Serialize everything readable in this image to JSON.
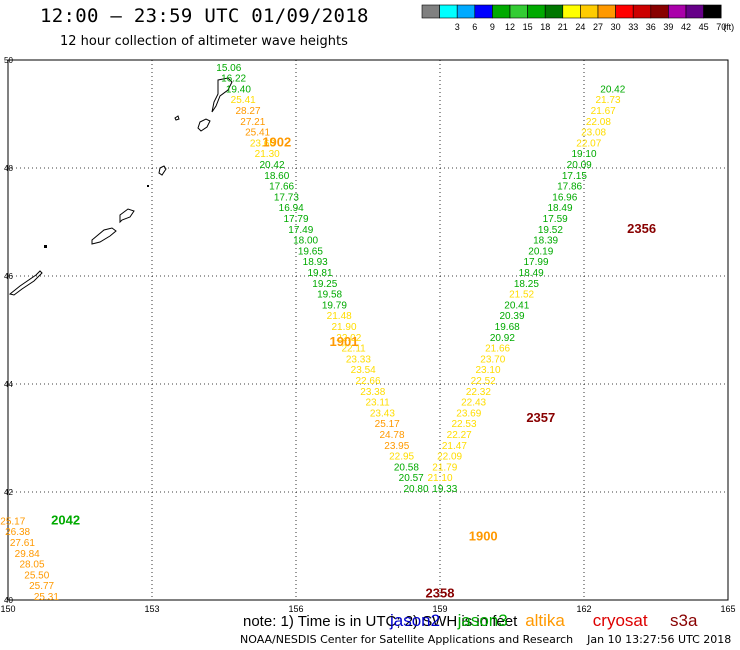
{
  "header": {
    "title": "12:00 – 23:59 UTC 01/09/2018",
    "subtitle": "12 hour collection of altimeter wave heights"
  },
  "footer": {
    "credit": "NOAA/NESDIS Center for Satellite Applications and Research    Jan 10 13:27:56 UTC 2018"
  },
  "colorbar": {
    "unit_label": "(ft)",
    "bins": [
      {
        "color": "#808080",
        "label": ""
      },
      {
        "color": "#00ffff",
        "label": "3"
      },
      {
        "color": "#00aaff",
        "label": "6"
      },
      {
        "color": "#0000ff",
        "label": "9"
      },
      {
        "color": "#00aa00",
        "label": "12"
      },
      {
        "color": "#33cc33",
        "label": "15"
      },
      {
        "color": "#00aa00",
        "label": "18"
      },
      {
        "color": "#007700",
        "label": "21"
      },
      {
        "color": "#ffff00",
        "label": "24"
      },
      {
        "color": "#ffcc00",
        "label": "27"
      },
      {
        "color": "#ff9900",
        "label": "30"
      },
      {
        "color": "#ff0000",
        "label": "33"
      },
      {
        "color": "#cc0000",
        "label": "36"
      },
      {
        "color": "#880000",
        "label": "39"
      },
      {
        "color": "#aa00aa",
        "label": "42"
      },
      {
        "color": "#660088",
        "label": "45"
      },
      {
        "color": "#000000",
        "label": "70"
      }
    ]
  },
  "map": {
    "lon_range": [
      150,
      165
    ],
    "lat_range": [
      40,
      50
    ],
    "x_ticks": [
      "150",
      "153",
      "156",
      "159",
      "162",
      "165"
    ],
    "y_ticks": [
      "40",
      "42",
      "44",
      "46",
      "48",
      "50"
    ],
    "grid": "dotted"
  },
  "legend": {
    "note": "note: 1) Time is in UTC; 2) SWH is in feet",
    "satellites": [
      {
        "name": "jason2",
        "color": "#0000cc"
      },
      {
        "name": "jason3",
        "color": "#00aa00"
      },
      {
        "name": "altika",
        "color": "#ff9900"
      },
      {
        "name": "cryosat",
        "color": "#dd0000"
      },
      {
        "name": "s3a",
        "color": "#880000"
      }
    ]
  },
  "colors": {
    "green": "#00aa00",
    "yellow": "#ffdd00",
    "orange": "#ff9900",
    "darkred": "#880000",
    "coast": "#000000",
    "grid": "#000000"
  },
  "chart_data": {
    "type": "scatter",
    "x_range": [
      150,
      165
    ],
    "y_range": [
      40,
      50
    ],
    "pass_labels": [
      {
        "text": "1902",
        "lon": 155.6,
        "lat": 48.4,
        "color": "#ff9900"
      },
      {
        "text": "1901",
        "lon": 157.0,
        "lat": 44.7,
        "color": "#ff9900"
      },
      {
        "text": "1900",
        "lon": 159.9,
        "lat": 41.1,
        "color": "#ff9900"
      },
      {
        "text": "2356",
        "lon": 163.2,
        "lat": 46.8,
        "color": "#880000"
      },
      {
        "text": "2357",
        "lon": 161.1,
        "lat": 43.3,
        "color": "#880000"
      },
      {
        "text": "2358",
        "lon": 159.0,
        "lat": 40.05,
        "color": "#880000"
      },
      {
        "text": "2042",
        "lon": 151.2,
        "lat": 41.4,
        "color": "#00aa00"
      }
    ],
    "tracks": [
      {
        "id": "track-descending-a",
        "points": [
          {
            "lon": 154.6,
            "lat": 49.8,
            "v": "15.06",
            "color": "#00aa00"
          },
          {
            "lon": 154.7,
            "lat": 49.6,
            "v": "16.22",
            "color": "#00aa00"
          },
          {
            "lon": 154.8,
            "lat": 49.4,
            "v": "19.40",
            "color": "#00aa00"
          },
          {
            "lon": 154.9,
            "lat": 49.2,
            "v": "25.41",
            "color": "#ffdd00"
          },
          {
            "lon": 155.0,
            "lat": 49.0,
            "v": "28.27",
            "color": "#ff9900"
          },
          {
            "lon": 155.1,
            "lat": 48.8,
            "v": "27.21",
            "color": "#ff9900"
          },
          {
            "lon": 155.2,
            "lat": 48.6,
            "v": "25.41",
            "color": "#ff9900"
          },
          {
            "lon": 155.3,
            "lat": 48.4,
            "v": "23.66",
            "color": "#ffdd00"
          },
          {
            "lon": 155.4,
            "lat": 48.2,
            "v": "21.30",
            "color": "#ffdd00"
          },
          {
            "lon": 155.5,
            "lat": 48.0,
            "v": "20.42",
            "color": "#00aa00"
          },
          {
            "lon": 155.6,
            "lat": 47.8,
            "v": "18.60",
            "color": "#00aa00"
          },
          {
            "lon": 155.7,
            "lat": 47.6,
            "v": "17.66",
            "color": "#00aa00"
          },
          {
            "lon": 155.8,
            "lat": 47.4,
            "v": "17.73",
            "color": "#00aa00"
          },
          {
            "lon": 155.9,
            "lat": 47.2,
            "v": "16.94",
            "color": "#00aa00"
          },
          {
            "lon": 156.0,
            "lat": 47.0,
            "v": "17.79",
            "color": "#00aa00"
          },
          {
            "lon": 156.1,
            "lat": 46.8,
            "v": "17.49",
            "color": "#00aa00"
          },
          {
            "lon": 156.2,
            "lat": 46.6,
            "v": "18.00",
            "color": "#00aa00"
          },
          {
            "lon": 156.3,
            "lat": 46.4,
            "v": "19.65",
            "color": "#00aa00"
          },
          {
            "lon": 156.4,
            "lat": 46.2,
            "v": "18.93",
            "color": "#00aa00"
          },
          {
            "lon": 156.5,
            "lat": 46.0,
            "v": "19.81",
            "color": "#00aa00"
          },
          {
            "lon": 156.6,
            "lat": 45.8,
            "v": "19.25",
            "color": "#00aa00"
          },
          {
            "lon": 156.7,
            "lat": 45.6,
            "v": "19.58",
            "color": "#00aa00"
          },
          {
            "lon": 156.8,
            "lat": 45.4,
            "v": "19.79",
            "color": "#00aa00"
          },
          {
            "lon": 156.9,
            "lat": 45.2,
            "v": "21.48",
            "color": "#ffdd00"
          },
          {
            "lon": 157.0,
            "lat": 45.0,
            "v": "21.90",
            "color": "#ffdd00"
          },
          {
            "lon": 157.1,
            "lat": 44.8,
            "v": "22.02",
            "color": "#ffdd00"
          },
          {
            "lon": 157.2,
            "lat": 44.6,
            "v": "22.11",
            "color": "#ffdd00"
          },
          {
            "lon": 157.3,
            "lat": 44.4,
            "v": "23.33",
            "color": "#ffdd00"
          },
          {
            "lon": 157.4,
            "lat": 44.2,
            "v": "23.54",
            "color": "#ffdd00"
          },
          {
            "lon": 157.5,
            "lat": 44.0,
            "v": "22.66",
            "color": "#ffdd00"
          },
          {
            "lon": 157.6,
            "lat": 43.8,
            "v": "23.38",
            "color": "#ffdd00"
          },
          {
            "lon": 157.7,
            "lat": 43.6,
            "v": "23.11",
            "color": "#ffdd00"
          },
          {
            "lon": 157.8,
            "lat": 43.4,
            "v": "23.43",
            "color": "#ffdd00"
          },
          {
            "lon": 157.9,
            "lat": 43.2,
            "v": "25.17",
            "color": "#ff9900"
          },
          {
            "lon": 158.0,
            "lat": 43.0,
            "v": "24.78",
            "color": "#ff9900"
          },
          {
            "lon": 158.1,
            "lat": 42.8,
            "v": "23.95",
            "color": "#ff9900"
          },
          {
            "lon": 158.2,
            "lat": 42.6,
            "v": "22.95",
            "color": "#ffdd00"
          },
          {
            "lon": 158.3,
            "lat": 42.4,
            "v": "20.58",
            "color": "#00aa00"
          },
          {
            "lon": 158.4,
            "lat": 42.2,
            "v": "20.57",
            "color": "#00aa00"
          },
          {
            "lon": 158.5,
            "lat": 42.0,
            "v": "20.80",
            "color": "#00aa00"
          }
        ]
      },
      {
        "id": "track-ascending-b",
        "points": [
          {
            "lon": 159.1,
            "lat": 42.0,
            "v": "19.33",
            "color": "#00aa00"
          },
          {
            "lon": 159.0,
            "lat": 42.2,
            "v": "21.10",
            "color": "#ffdd00"
          },
          {
            "lon": 159.1,
            "lat": 42.4,
            "v": "21.79",
            "color": "#ffdd00"
          },
          {
            "lon": 159.2,
            "lat": 42.6,
            "v": "22.09",
            "color": "#ffdd00"
          },
          {
            "lon": 159.3,
            "lat": 42.8,
            "v": "21.47",
            "color": "#ffdd00"
          },
          {
            "lon": 159.4,
            "lat": 43.0,
            "v": "22.27",
            "color": "#ffdd00"
          },
          {
            "lon": 159.5,
            "lat": 43.2,
            "v": "22.53",
            "color": "#ffdd00"
          },
          {
            "lon": 159.6,
            "lat": 43.4,
            "v": "23.69",
            "color": "#ffdd00"
          },
          {
            "lon": 159.7,
            "lat": 43.6,
            "v": "22.43",
            "color": "#ffdd00"
          },
          {
            "lon": 159.8,
            "lat": 43.8,
            "v": "22.32",
            "color": "#ffdd00"
          },
          {
            "lon": 159.9,
            "lat": 44.0,
            "v": "22.52",
            "color": "#ffdd00"
          },
          {
            "lon": 160.0,
            "lat": 44.2,
            "v": "23.10",
            "color": "#ffdd00"
          },
          {
            "lon": 160.1,
            "lat": 44.4,
            "v": "23.70",
            "color": "#ffdd00"
          },
          {
            "lon": 160.2,
            "lat": 44.6,
            "v": "21.66",
            "color": "#ffdd00"
          },
          {
            "lon": 160.3,
            "lat": 44.8,
            "v": "20.92",
            "color": "#00aa00"
          },
          {
            "lon": 160.4,
            "lat": 45.0,
            "v": "19.68",
            "color": "#00aa00"
          },
          {
            "lon": 160.5,
            "lat": 45.2,
            "v": "20.39",
            "color": "#00aa00"
          },
          {
            "lon": 160.6,
            "lat": 45.4,
            "v": "20.41",
            "color": "#00aa00"
          },
          {
            "lon": 160.7,
            "lat": 45.6,
            "v": "21.52",
            "color": "#ffdd00"
          },
          {
            "lon": 160.8,
            "lat": 45.8,
            "v": "18.25",
            "color": "#00aa00"
          },
          {
            "lon": 160.9,
            "lat": 46.0,
            "v": "18.49",
            "color": "#00aa00"
          },
          {
            "lon": 161.0,
            "lat": 46.2,
            "v": "17.99",
            "color": "#00aa00"
          },
          {
            "lon": 161.1,
            "lat": 46.4,
            "v": "20.19",
            "color": "#00aa00"
          },
          {
            "lon": 161.2,
            "lat": 46.6,
            "v": "18.39",
            "color": "#00aa00"
          },
          {
            "lon": 161.3,
            "lat": 46.8,
            "v": "19.52",
            "color": "#00aa00"
          },
          {
            "lon": 161.4,
            "lat": 47.0,
            "v": "17.59",
            "color": "#00aa00"
          },
          {
            "lon": 161.5,
            "lat": 47.2,
            "v": "18.49",
            "color": "#00aa00"
          },
          {
            "lon": 161.6,
            "lat": 47.4,
            "v": "16.96",
            "color": "#00aa00"
          },
          {
            "lon": 161.7,
            "lat": 47.6,
            "v": "17.86",
            "color": "#00aa00"
          },
          {
            "lon": 161.8,
            "lat": 47.8,
            "v": "17.15",
            "color": "#00aa00"
          },
          {
            "lon": 161.9,
            "lat": 48.0,
            "v": "20.09",
            "color": "#00aa00"
          },
          {
            "lon": 162.0,
            "lat": 48.2,
            "v": "19.10",
            "color": "#00aa00"
          },
          {
            "lon": 162.1,
            "lat": 48.4,
            "v": "22.07",
            "color": "#ffdd00"
          },
          {
            "lon": 162.2,
            "lat": 48.6,
            "v": "23.08",
            "color": "#ffdd00"
          },
          {
            "lon": 162.3,
            "lat": 48.8,
            "v": "22.08",
            "color": "#ffdd00"
          },
          {
            "lon": 162.4,
            "lat": 49.0,
            "v": "21.67",
            "color": "#ffdd00"
          },
          {
            "lon": 162.5,
            "lat": 49.2,
            "v": "21.73",
            "color": "#ffdd00"
          },
          {
            "lon": 162.6,
            "lat": 49.4,
            "v": "20.42",
            "color": "#00aa00"
          }
        ]
      },
      {
        "id": "track-southwest-c",
        "points": [
          {
            "lon": 150.1,
            "lat": 41.4,
            "v": "25.17",
            "color": "#ff9900"
          },
          {
            "lon": 150.2,
            "lat": 41.2,
            "v": "26.38",
            "color": "#ff9900"
          },
          {
            "lon": 150.3,
            "lat": 41.0,
            "v": "27.61",
            "color": "#ff9900"
          },
          {
            "lon": 150.4,
            "lat": 40.8,
            "v": "29.84",
            "color": "#ff9900"
          },
          {
            "lon": 150.5,
            "lat": 40.6,
            "v": "28.05",
            "color": "#ff9900"
          },
          {
            "lon": 150.6,
            "lat": 40.4,
            "v": "25.50",
            "color": "#ff9900"
          },
          {
            "lon": 150.7,
            "lat": 40.2,
            "v": "25.77",
            "color": "#ff9900"
          },
          {
            "lon": 150.8,
            "lat": 40.0,
            "v": "25.31",
            "color": "#ff9900"
          }
        ]
      }
    ],
    "coastline_segments": [
      {
        "id": "coast-island-1"
      },
      {
        "id": "coast-island-2"
      },
      {
        "id": "coast-island-3"
      },
      {
        "id": "coast-island-4"
      },
      {
        "id": "coast-island-5"
      },
      {
        "id": "coast-island-6"
      },
      {
        "id": "coast-island-7"
      }
    ]
  }
}
